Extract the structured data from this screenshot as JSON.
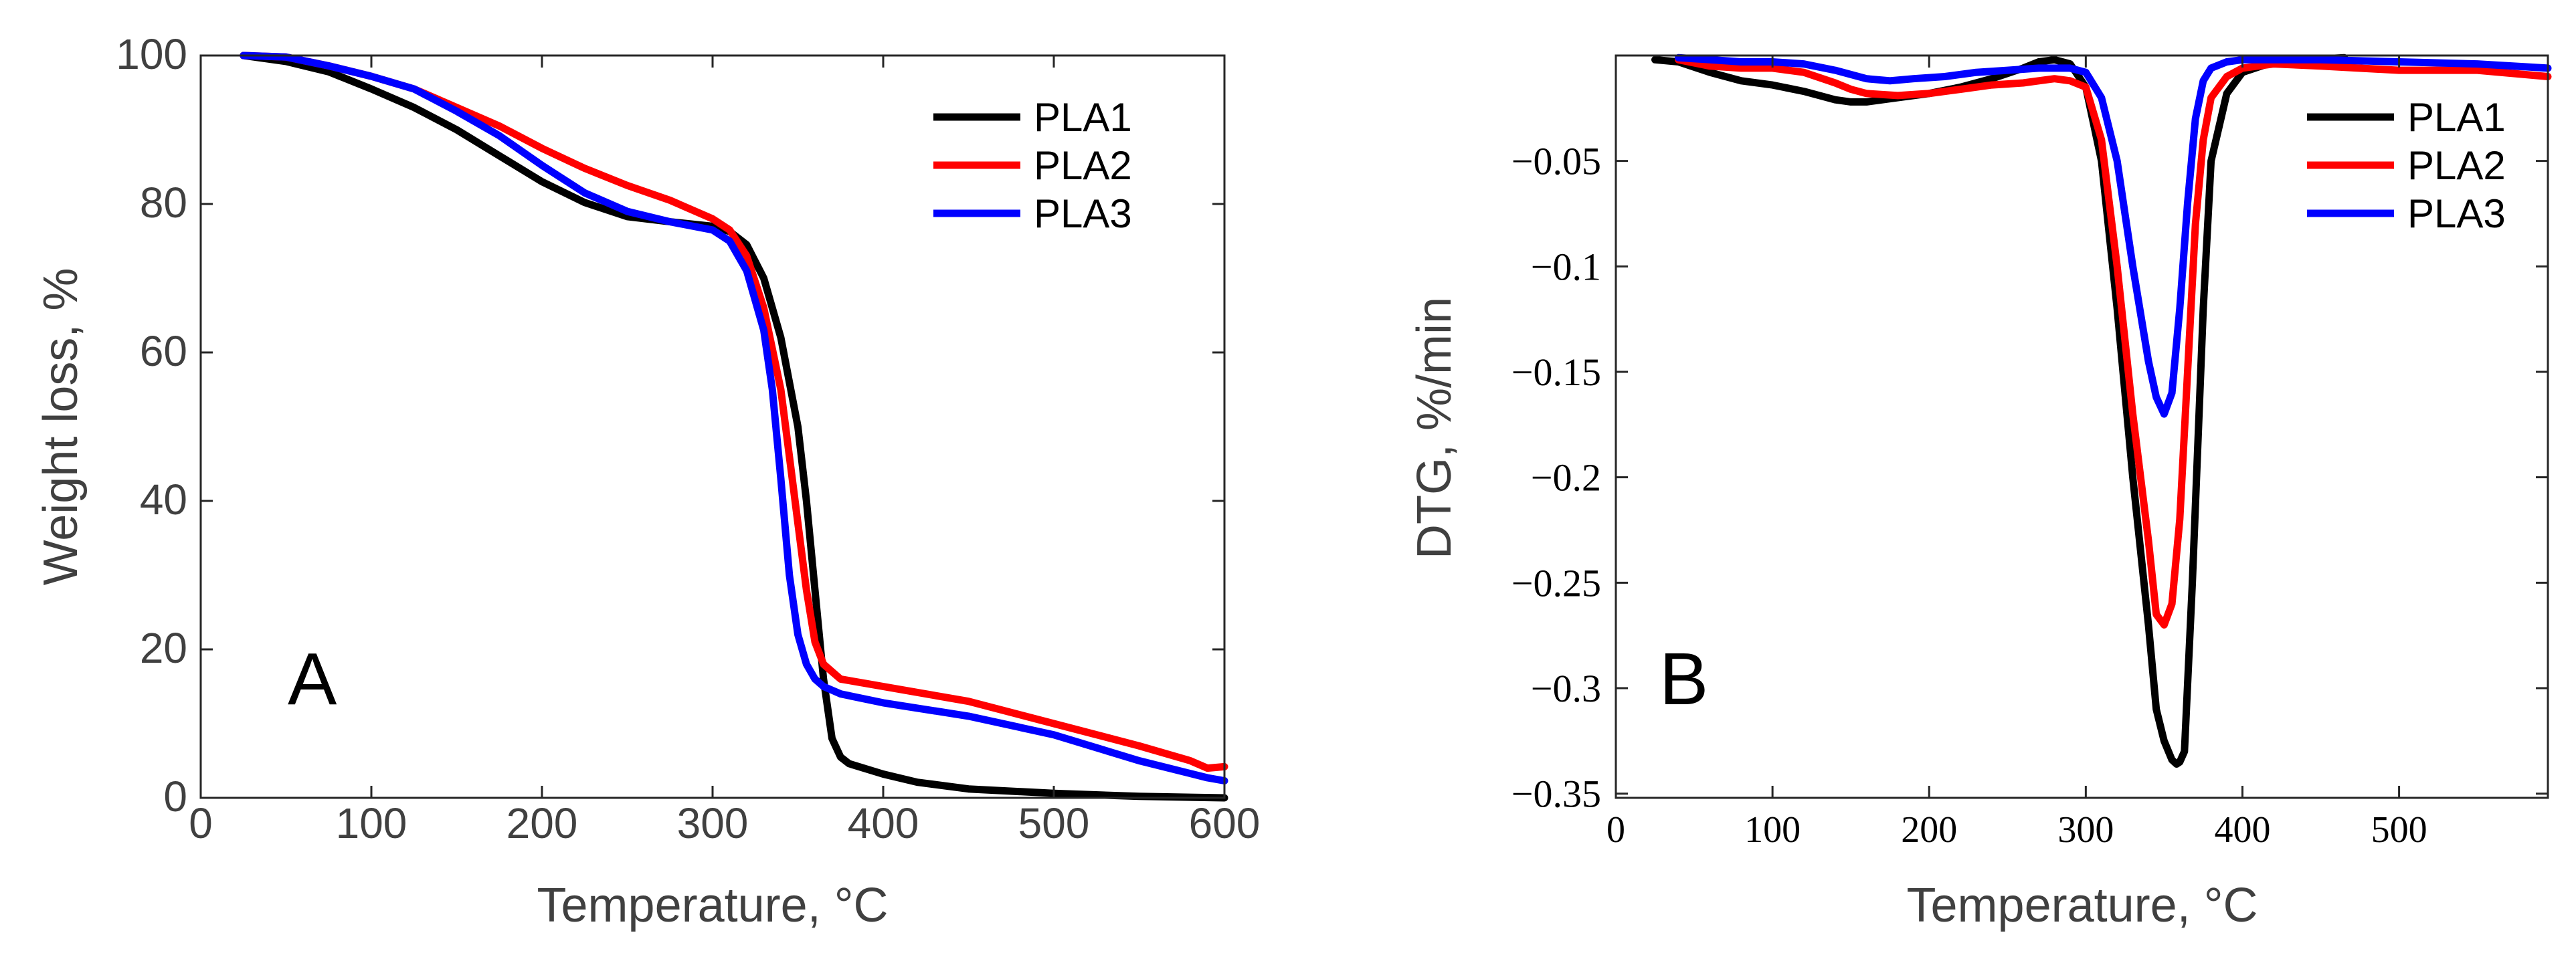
{
  "chart_data": [
    {
      "type": "line",
      "panel_label": "A",
      "xlabel": "Temperature, °C",
      "ylabel": "Weight loss, %",
      "xlim": [
        0,
        600
      ],
      "ylim": [
        0,
        100
      ],
      "xticks": [
        0,
        100,
        200,
        300,
        400,
        500,
        600
      ],
      "yticks": [
        0,
        20,
        40,
        60,
        80,
        100
      ],
      "legend_position": "top-right",
      "series": [
        {
          "name": "PLA1",
          "color": "#000000",
          "x": [
            25,
            50,
            75,
            100,
            125,
            150,
            175,
            200,
            225,
            250,
            275,
            300,
            310,
            320,
            330,
            340,
            350,
            355,
            360,
            365,
            370,
            375,
            380,
            400,
            420,
            450,
            500,
            550,
            600
          ],
          "y": [
            100,
            99.2,
            97.8,
            95.5,
            93,
            90,
            86.5,
            83,
            80.2,
            78.3,
            77.6,
            77,
            76.3,
            74.5,
            70,
            62,
            50,
            40,
            28,
            16,
            8,
            5.5,
            4.6,
            3.2,
            2.1,
            1.2,
            0.6,
            0.2,
            0
          ]
        },
        {
          "name": "PLA2",
          "color": "#ff0000",
          "x": [
            25,
            50,
            75,
            100,
            125,
            150,
            175,
            200,
            225,
            250,
            275,
            300,
            310,
            320,
            330,
            340,
            345,
            350,
            355,
            360,
            365,
            370,
            375,
            400,
            450,
            500,
            550,
            580,
            590,
            600
          ],
          "y": [
            100,
            99.8,
            98.6,
            97.2,
            95.5,
            93,
            90.5,
            87.5,
            84.8,
            82.5,
            80.5,
            78,
            76.5,
            73,
            66,
            55,
            46,
            37,
            28,
            21,
            18,
            17,
            16,
            15,
            13,
            10,
            7,
            5,
            4,
            4.2
          ]
        },
        {
          "name": "PLA3",
          "color": "#0000ff",
          "x": [
            25,
            50,
            75,
            100,
            125,
            150,
            175,
            200,
            225,
            250,
            275,
            300,
            310,
            320,
            330,
            335,
            340,
            345,
            350,
            355,
            360,
            365,
            370,
            375,
            400,
            450,
            500,
            550,
            590,
            600
          ],
          "y": [
            100,
            99.8,
            98.6,
            97.2,
            95.5,
            92.5,
            89.2,
            85.2,
            81.5,
            79,
            77.6,
            76.5,
            75,
            71,
            63,
            55,
            43,
            30,
            22,
            18,
            16,
            15,
            14.5,
            14,
            12.8,
            11,
            8.5,
            5,
            2.7,
            2.3
          ]
        }
      ]
    },
    {
      "type": "line",
      "panel_label": "B",
      "xlabel": "Temperature, °C",
      "ylabel": "DTG, %/min",
      "xlim": [
        0,
        595
      ],
      "ylim": [
        -0.352,
        0
      ],
      "xticks": [
        0,
        100,
        200,
        300,
        400,
        500
      ],
      "yticks": [
        -0.05,
        -0.1,
        -0.15,
        -0.2,
        -0.25,
        -0.3,
        -0.35
      ],
      "ytick_labels": [
        "−0.05",
        "−0.1",
        "−0.15",
        "−0.2",
        "−0.25",
        "−0.3",
        "−0.35"
      ],
      "legend_position": "top-right",
      "series": [
        {
          "name": "PLA1",
          "color": "#000000",
          "x": [
            25,
            40,
            60,
            80,
            100,
            120,
            140,
            150,
            160,
            180,
            200,
            220,
            240,
            260,
            270,
            280,
            290,
            300,
            310,
            320,
            330,
            340,
            345,
            350,
            355,
            358,
            360,
            363,
            368,
            375,
            380,
            390,
            400,
            420,
            440,
            465
          ],
          "y": [
            -0.002,
            -0.003,
            -0.008,
            -0.012,
            -0.014,
            -0.017,
            -0.021,
            -0.022,
            -0.022,
            -0.02,
            -0.018,
            -0.015,
            -0.011,
            -0.006,
            -0.003,
            -0.002,
            -0.004,
            -0.015,
            -0.05,
            -0.12,
            -0.2,
            -0.27,
            -0.31,
            -0.325,
            -0.334,
            -0.336,
            -0.335,
            -0.33,
            -0.25,
            -0.12,
            -0.05,
            -0.018,
            -0.008,
            -0.003,
            -0.002,
            -0.001
          ]
        },
        {
          "name": "PLA2",
          "color": "#ff0000",
          "x": [
            40,
            60,
            80,
            100,
            120,
            140,
            150,
            160,
            180,
            200,
            220,
            240,
            260,
            280,
            290,
            300,
            310,
            320,
            330,
            340,
            345,
            350,
            355,
            360,
            365,
            370,
            375,
            380,
            390,
            400,
            420,
            450,
            500,
            550,
            595
          ],
          "y": [
            -0.002,
            -0.005,
            -0.006,
            -0.006,
            -0.008,
            -0.013,
            -0.016,
            -0.018,
            -0.019,
            -0.018,
            -0.016,
            -0.014,
            -0.013,
            -0.011,
            -0.012,
            -0.015,
            -0.04,
            -0.1,
            -0.17,
            -0.23,
            -0.265,
            -0.27,
            -0.26,
            -0.22,
            -0.15,
            -0.08,
            -0.04,
            -0.02,
            -0.01,
            -0.006,
            -0.004,
            -0.005,
            -0.007,
            -0.007,
            -0.01
          ]
        },
        {
          "name": "PLA3",
          "color": "#0000ff",
          "x": [
            40,
            60,
            80,
            100,
            120,
            140,
            160,
            175,
            190,
            210,
            230,
            250,
            270,
            290,
            300,
            310,
            320,
            330,
            340,
            345,
            350,
            355,
            360,
            365,
            370,
            375,
            380,
            390,
            400,
            420,
            450,
            500,
            550,
            595
          ],
          "y": [
            -0.001,
            -0.002,
            -0.003,
            -0.003,
            -0.004,
            -0.007,
            -0.011,
            -0.012,
            -0.011,
            -0.01,
            -0.008,
            -0.007,
            -0.006,
            -0.006,
            -0.008,
            -0.02,
            -0.05,
            -0.1,
            -0.145,
            -0.162,
            -0.17,
            -0.16,
            -0.12,
            -0.07,
            -0.03,
            -0.012,
            -0.006,
            -0.003,
            -0.002,
            -0.002,
            -0.002,
            -0.003,
            -0.004,
            -0.006
          ]
        }
      ]
    }
  ]
}
